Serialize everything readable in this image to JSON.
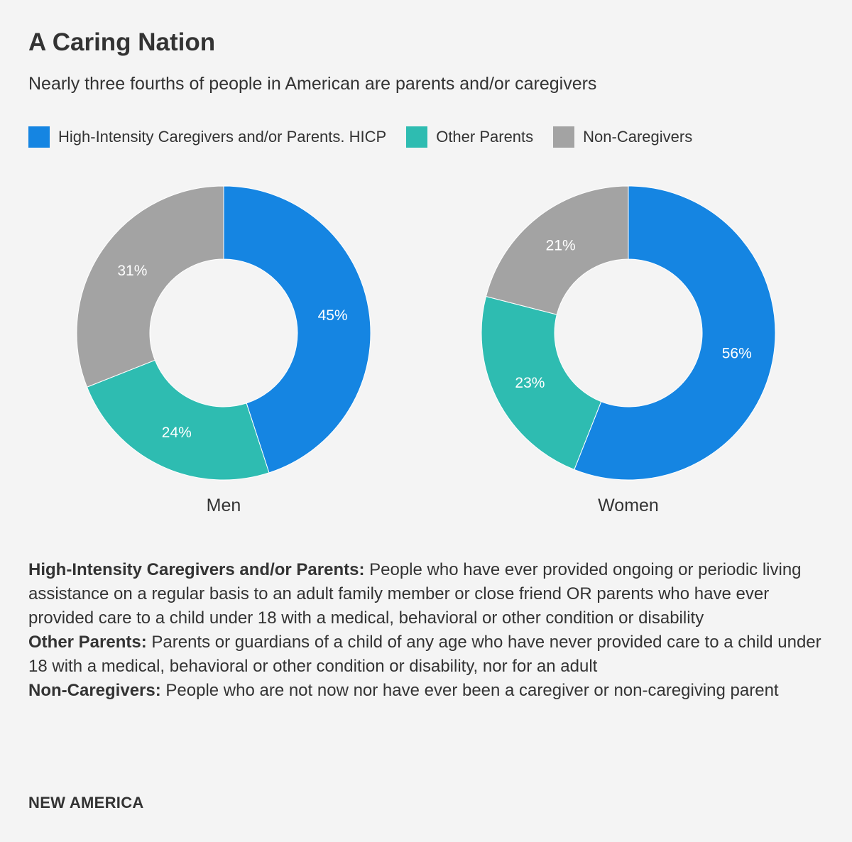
{
  "title": "A Caring Nation",
  "subtitle": "Nearly three fourths of people in American are parents and/or caregivers",
  "legend": [
    {
      "label": "High-Intensity Caregivers and/or Parents. HICP",
      "color": "#1585e2"
    },
    {
      "label": "Other Parents",
      "color": "#2ebcb1"
    },
    {
      "label": "Non-Caregivers",
      "color": "#a3a3a3"
    }
  ],
  "chart_data": {
    "type": "pie",
    "variant": "donut",
    "series_names": [
      "High-Intensity Caregivers and/or Parents. HICP",
      "Other Parents",
      "Non-Caregivers"
    ],
    "colors": [
      "#1585e2",
      "#2ebcb1",
      "#a3a3a3"
    ],
    "charts": [
      {
        "label": "Men",
        "values": [
          45,
          24,
          31
        ],
        "value_labels": [
          "45%",
          "24%",
          "31%"
        ]
      },
      {
        "label": "Women",
        "values": [
          56,
          23,
          21
        ],
        "value_labels": [
          "56%",
          "23%",
          "21%"
        ]
      }
    ]
  },
  "notes": [
    {
      "term": "High-Intensity Caregivers and/or Parents:",
      "text": " People who have ever provided ongoing or periodic living assistance on a regular basis to an adult family member or close friend OR parents who have ever provided care to a child under 18 with a medical, behavioral or other condition or disability"
    },
    {
      "term": "Other Parents:",
      "text": " Parents or guardians of a child of any age who have never provided care to a child under 18 with a medical, behavioral or other condition or disability, nor for an adult"
    },
    {
      "term": "Non-Caregivers:",
      "text": " People who are not now nor have ever been a caregiver or non-caregiving parent"
    }
  ],
  "source": "NEW AMERICA"
}
